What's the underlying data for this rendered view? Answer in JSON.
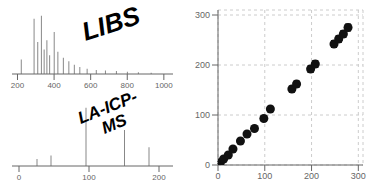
{
  "chart_data": [
    {
      "type": "stem",
      "annotation": [
        "LIBS"
      ],
      "x": [
        220,
        290,
        310,
        330,
        345,
        360,
        375,
        400,
        420,
        450,
        480,
        510,
        540,
        580,
        630,
        680,
        740,
        800,
        860,
        930
      ],
      "values": [
        0.25,
        0.95,
        0.55,
        1.0,
        0.42,
        0.58,
        0.32,
        0.72,
        0.38,
        0.28,
        0.22,
        0.16,
        0.12,
        0.09,
        0.07,
        0.06,
        0.05,
        0.04,
        0.03,
        0.02
      ],
      "color": "#888888",
      "xlim": [
        170,
        1050
      ],
      "xticks": [
        200,
        400,
        600,
        800,
        1000
      ],
      "ylim": [
        0,
        1.15
      ],
      "tick_labels": "x"
    },
    {
      "type": "stem",
      "annotation": [
        "LA-ICP-",
        "MS"
      ],
      "x": [
        25,
        45,
        95,
        150,
        185
      ],
      "values": [
        0.12,
        0.18,
        1.0,
        0.62,
        0.32
      ],
      "color": "#888888",
      "xlim": [
        -10,
        220
      ],
      "xticks": [
        0,
        100,
        200
      ],
      "ylim": [
        0,
        1.15
      ],
      "tick_labels": "x"
    },
    {
      "type": "scatter",
      "x": [
        5,
        12,
        22,
        32,
        48,
        62,
        78,
        98,
        112,
        158,
        168,
        198,
        208,
        248,
        258,
        268,
        278
      ],
      "values": [
        5,
        12,
        20,
        32,
        48,
        62,
        73,
        93,
        112,
        152,
        162,
        192,
        202,
        242,
        252,
        262,
        275
      ],
      "y_errors": [
        2,
        2,
        2,
        2,
        2,
        2,
        3,
        5,
        5,
        6,
        6,
        7,
        7,
        7,
        7,
        7,
        7
      ],
      "color": "#111111",
      "xlim": [
        0,
        310
      ],
      "ylim": [
        0,
        310
      ],
      "xticks": [
        0,
        100,
        200,
        300
      ],
      "yticks": [
        0,
        100,
        200,
        300
      ],
      "grid": true
    }
  ]
}
